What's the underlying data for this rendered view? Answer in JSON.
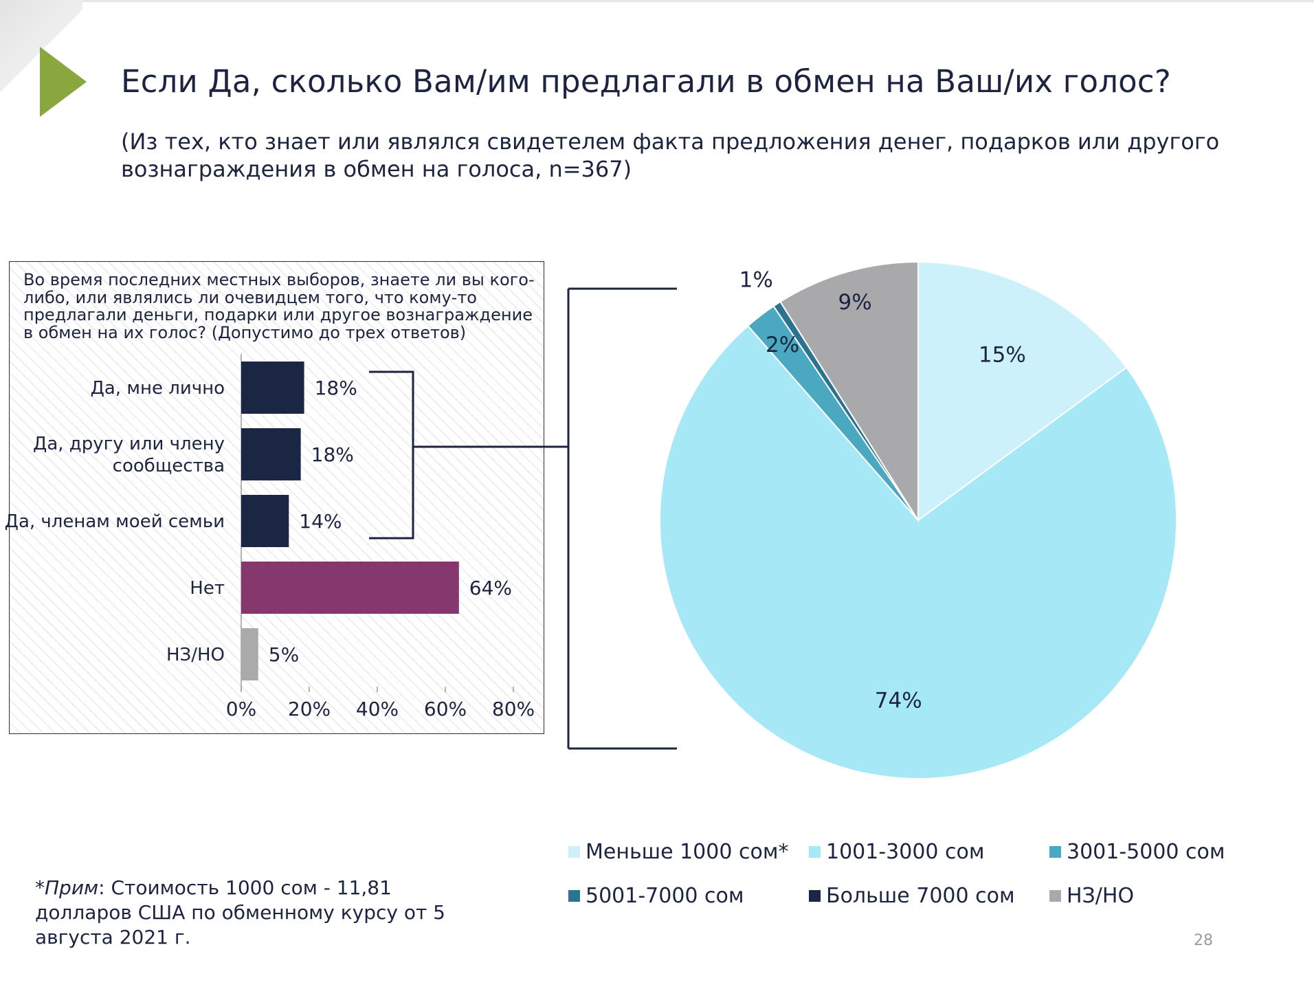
{
  "slide": {
    "title": "Если Да, сколько Вам/им предлагали в обмен на Ваш/их голос?",
    "subtitle": "(Из тех, кто знает или являлся свидетелем факта предложения денег, подарков или другого вознаграждения в обмен на голоса, n=367)",
    "page_number": "28"
  },
  "footnote": {
    "label": "*Прим",
    "text": ": Стоимость 1000 сом - 11,81 долларов США по обменному курсу от 5 августа 2021 г."
  },
  "bar_panel": {
    "question": "Во время последних местных выборов, знаете ли вы кого-либо, или являлись ли очевидцем того, что кому-то предлагали деньги, подарки или другое вознаграждение в обмен на их голос? (Допустимо до трех ответов)"
  },
  "colors": {
    "navy": "#1b2644",
    "purple": "#85386d",
    "gray": "#aaaaaa",
    "lightest_blue": "#cdf1fb",
    "light_blue": "#a6e8f6",
    "teal": "#4aa8c0",
    "dark_teal": "#2b7390",
    "pie_gray": "#a9a9ab",
    "accent_green": "#8aa63e"
  },
  "chart_data": [
    {
      "type": "bar",
      "orientation": "horizontal",
      "categories": [
        "Да, мне лично",
        "Да, другу или члену сообщества",
        "Да, членам моей семьи",
        "Нет",
        "НЗ/НО"
      ],
      "category_lines": [
        [
          "Да, мне лично"
        ],
        [
          "Да, другу или члену",
          "сообщества"
        ],
        [
          "Да, членам моей семьи"
        ],
        [
          "Нет"
        ],
        [
          "НЗ/НО"
        ]
      ],
      "values": [
        18.5,
        17.5,
        14,
        64,
        5
      ],
      "data_labels": [
        "18%",
        "18%",
        "14%",
        "64%",
        "5%"
      ],
      "bar_colors": [
        "#1b2644",
        "#1b2644",
        "#1b2644",
        "#85386d",
        "#aaaaaa"
      ],
      "xlim": [
        0,
        80
      ],
      "xticks": [
        0,
        20,
        40,
        60,
        80
      ],
      "xtick_labels": [
        "0%",
        "20%",
        "40%",
        "60%",
        "80%"
      ],
      "title": "",
      "xlabel": "",
      "ylabel": ""
    },
    {
      "type": "pie",
      "start": "12 o'clock, clockwise",
      "labels": [
        "Меньше 1000 сом*",
        "1001-3000 сом",
        "3001-5000 сом",
        "5001-7000 сом",
        "Больше 7000 сом",
        "НЗ/НО"
      ],
      "values": [
        15,
        74,
        2,
        0.5,
        0,
        9
      ],
      "data_labels": [
        "15%",
        "74%",
        "2%",
        "1%",
        "",
        "9%"
      ],
      "colors": [
        "#cdf1fb",
        "#a6e8f6",
        "#4aa8c0",
        "#2b7390",
        "#1b2644",
        "#a9a9ab"
      ],
      "legend_position": "bottom-right"
    }
  ]
}
